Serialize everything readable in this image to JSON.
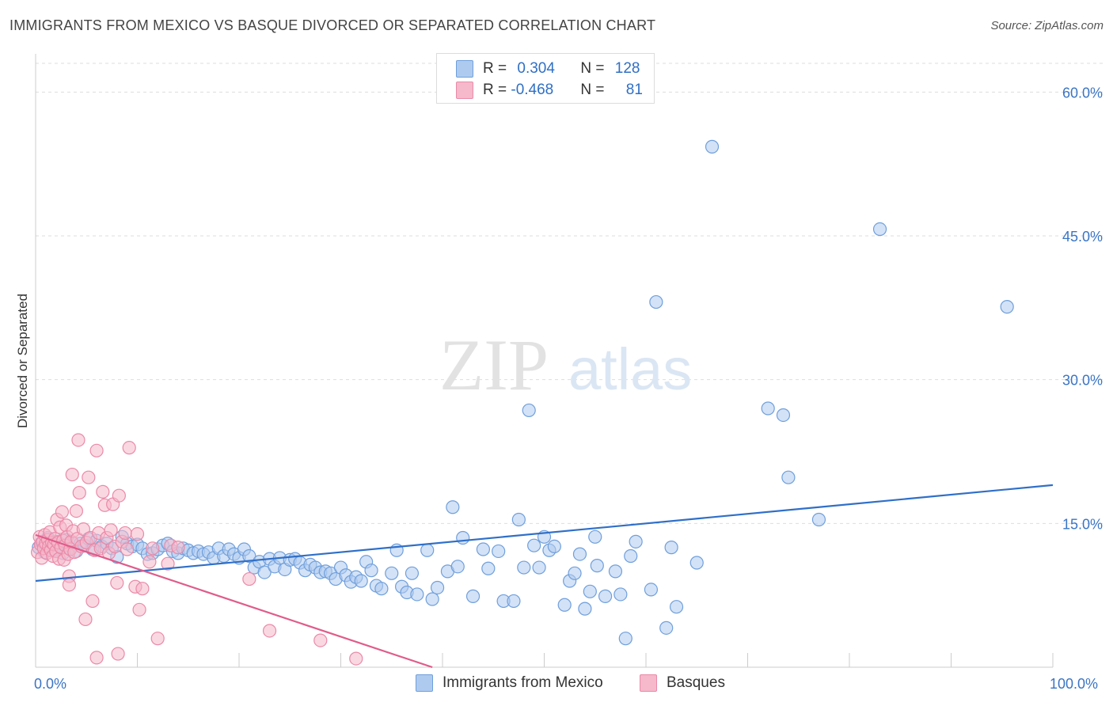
{
  "header": {
    "title": "IMMIGRANTS FROM MEXICO VS BASQUE DIVORCED OR SEPARATED CORRELATION CHART",
    "source": "Source: ZipAtlas.com"
  },
  "watermark": {
    "zip": "ZIP",
    "atlas": "atlas"
  },
  "legend_top": {
    "rows": [
      {
        "r_label": "R = ",
        "r_value": "0.304",
        "n_label": "N = ",
        "n_value": "128"
      },
      {
        "r_label": "R = ",
        "r_value": "-0.468",
        "n_label": "N = ",
        "n_value": "81"
      }
    ]
  },
  "legend_bottom": {
    "items": [
      {
        "label": "Immigrants from Mexico"
      },
      {
        "label": "Basques"
      }
    ]
  },
  "colors": {
    "blue_fill": "#aecbef",
    "blue_stroke": "#6f9fdc",
    "blue_line": "#2f6fc8",
    "pink_fill": "#f6b8cb",
    "pink_stroke": "#ea8aa8",
    "pink_line": "#e05c8a",
    "tick_label": "#3a75c4",
    "grid": "#dddddd"
  },
  "chart_data": {
    "type": "scatter",
    "title": "IMMIGRANTS FROM MEXICO VS BASQUE DIVORCED OR SEPARATED CORRELATION CHART",
    "xlabel": "",
    "ylabel": "Divorced or Separated",
    "xlim": [
      0,
      100
    ],
    "ylim": [
      0,
      63
    ],
    "x_tick_labels": [
      "0.0%",
      "100.0%"
    ],
    "y_ticks": [
      15,
      30,
      45,
      60
    ],
    "y_tick_labels": [
      "15.0%",
      "30.0%",
      "45.0%",
      "60.0%"
    ],
    "grid": true,
    "legend_position": "top-center",
    "series": [
      {
        "name": "Immigrants from Mexico",
        "color": "#aecbef",
        "r": 0.304,
        "n": 128,
        "trend": {
          "x": [
            0,
            100
          ],
          "y": [
            9.0,
            19.0
          ]
        },
        "points": [
          [
            0.3,
            12.5
          ],
          [
            0.6,
            13.0
          ],
          [
            0.9,
            12.0
          ],
          [
            1.2,
            13.5
          ],
          [
            1.5,
            12.8
          ],
          [
            1.8,
            12.2
          ],
          [
            2.1,
            13.1
          ],
          [
            2.4,
            12.6
          ],
          [
            2.7,
            11.9
          ],
          [
            3.0,
            13.3
          ],
          [
            3.3,
            12.4
          ],
          [
            3.6,
            13.0
          ],
          [
            4.0,
            12.1
          ],
          [
            4.4,
            12.9
          ],
          [
            4.8,
            12.7
          ],
          [
            5.2,
            13.4
          ],
          [
            5.6,
            12.3
          ],
          [
            6.0,
            13.2
          ],
          [
            6.5,
            12.6
          ],
          [
            7.0,
            12.9
          ],
          [
            7.5,
            12.4
          ],
          [
            8.0,
            11.5
          ],
          [
            8.5,
            13.6
          ],
          [
            9.0,
            12.9
          ],
          [
            9.5,
            12.6
          ],
          [
            10.0,
            12.8
          ],
          [
            10.5,
            12.4
          ],
          [
            11.0,
            11.8
          ],
          [
            11.5,
            11.9
          ],
          [
            12.0,
            12.3
          ],
          [
            12.5,
            12.7
          ],
          [
            13.0,
            12.9
          ],
          [
            13.5,
            12.1
          ],
          [
            14.0,
            11.9
          ],
          [
            14.5,
            12.4
          ],
          [
            15.0,
            12.2
          ],
          [
            15.5,
            11.9
          ],
          [
            16.0,
            12.1
          ],
          [
            16.5,
            11.8
          ],
          [
            17.0,
            12.0
          ],
          [
            17.5,
            11.4
          ],
          [
            18.0,
            12.4
          ],
          [
            18.5,
            11.6
          ],
          [
            19.0,
            12.3
          ],
          [
            19.5,
            11.8
          ],
          [
            20.0,
            11.4
          ],
          [
            20.5,
            12.3
          ],
          [
            21.0,
            11.6
          ],
          [
            21.5,
            10.4
          ],
          [
            22.0,
            11.0
          ],
          [
            22.5,
            9.9
          ],
          [
            23.0,
            11.3
          ],
          [
            23.5,
            10.5
          ],
          [
            24.0,
            11.4
          ],
          [
            24.5,
            10.2
          ],
          [
            25.0,
            11.2
          ],
          [
            25.5,
            11.3
          ],
          [
            26.0,
            10.9
          ],
          [
            26.5,
            10.1
          ],
          [
            27.0,
            10.7
          ],
          [
            27.5,
            10.4
          ],
          [
            28.0,
            9.9
          ],
          [
            28.5,
            10.0
          ],
          [
            29.0,
            9.8
          ],
          [
            29.5,
            9.2
          ],
          [
            30.0,
            10.4
          ],
          [
            30.5,
            9.6
          ],
          [
            31.0,
            8.9
          ],
          [
            31.5,
            9.4
          ],
          [
            32.0,
            9.0
          ],
          [
            32.5,
            11.0
          ],
          [
            33.0,
            10.1
          ],
          [
            33.5,
            8.5
          ],
          [
            34.0,
            8.2
          ],
          [
            35.0,
            9.8
          ],
          [
            35.5,
            12.2
          ],
          [
            36.0,
            8.4
          ],
          [
            36.5,
            7.8
          ],
          [
            37.0,
            9.8
          ],
          [
            37.5,
            7.6
          ],
          [
            38.5,
            12.2
          ],
          [
            39.0,
            7.1
          ],
          [
            39.5,
            8.3
          ],
          [
            40.5,
            10.0
          ],
          [
            41.0,
            16.7
          ],
          [
            41.5,
            10.5
          ],
          [
            42.0,
            13.5
          ],
          [
            43.0,
            7.4
          ],
          [
            44.0,
            12.3
          ],
          [
            44.5,
            10.3
          ],
          [
            45.5,
            12.1
          ],
          [
            46.0,
            6.9
          ],
          [
            47.0,
            6.9
          ],
          [
            47.5,
            15.4
          ],
          [
            48.0,
            10.4
          ],
          [
            48.5,
            26.8
          ],
          [
            49.0,
            12.7
          ],
          [
            49.5,
            10.4
          ],
          [
            50.0,
            13.6
          ],
          [
            50.5,
            12.2
          ],
          [
            51.0,
            12.6
          ],
          [
            52.0,
            6.5
          ],
          [
            52.5,
            9.0
          ],
          [
            53.0,
            9.8
          ],
          [
            53.5,
            11.8
          ],
          [
            54.0,
            6.1
          ],
          [
            54.5,
            7.9
          ],
          [
            55.0,
            13.6
          ],
          [
            55.2,
            10.6
          ],
          [
            56.0,
            7.4
          ],
          [
            57.0,
            10.0
          ],
          [
            57.5,
            7.6
          ],
          [
            58.0,
            3.0
          ],
          [
            58.5,
            11.6
          ],
          [
            59.0,
            13.1
          ],
          [
            60.5,
            8.1
          ],
          [
            61.0,
            38.1
          ],
          [
            62.0,
            4.1
          ],
          [
            62.5,
            12.5
          ],
          [
            63.0,
            6.3
          ],
          [
            65.0,
            10.9
          ],
          [
            66.5,
            54.3
          ],
          [
            72.0,
            27.0
          ],
          [
            73.5,
            26.3
          ],
          [
            74.0,
            19.8
          ],
          [
            77.0,
            15.4
          ],
          [
            83.0,
            45.7
          ],
          [
            95.5,
            37.6
          ]
        ]
      },
      {
        "name": "Basques",
        "color": "#f6b8cb",
        "r": -0.468,
        "n": 81,
        "trend": {
          "x": [
            0,
            39
          ],
          "y": [
            13.8,
            0
          ]
        },
        "points": [
          [
            0.2,
            12.0
          ],
          [
            0.4,
            13.6
          ],
          [
            0.5,
            12.8
          ],
          [
            0.6,
            11.4
          ],
          [
            0.7,
            13.1
          ],
          [
            0.8,
            12.4
          ],
          [
            0.9,
            13.8
          ],
          [
            1.0,
            12.9
          ],
          [
            1.1,
            11.9
          ],
          [
            1.2,
            13.3
          ],
          [
            1.3,
            12.6
          ],
          [
            1.4,
            14.1
          ],
          [
            1.5,
            12.2
          ],
          [
            1.6,
            13.0
          ],
          [
            1.7,
            11.6
          ],
          [
            1.8,
            12.8
          ],
          [
            1.9,
            13.4
          ],
          [
            2.0,
            12.1
          ],
          [
            2.1,
            15.4
          ],
          [
            2.2,
            13.0
          ],
          [
            2.3,
            11.3
          ],
          [
            2.4,
            14.6
          ],
          [
            2.5,
            12.5
          ],
          [
            2.6,
            16.2
          ],
          [
            2.7,
            13.2
          ],
          [
            2.8,
            11.2
          ],
          [
            2.9,
            12.7
          ],
          [
            3.0,
            14.8
          ],
          [
            3.1,
            13.6
          ],
          [
            3.2,
            11.8
          ],
          [
            3.3,
            9.5
          ],
          [
            3.3,
            8.6
          ],
          [
            3.4,
            12.3
          ],
          [
            3.5,
            13.1
          ],
          [
            3.6,
            20.1
          ],
          [
            3.7,
            14.2
          ],
          [
            3.8,
            12.0
          ],
          [
            4.0,
            16.3
          ],
          [
            4.1,
            13.4
          ],
          [
            4.2,
            23.7
          ],
          [
            4.3,
            18.2
          ],
          [
            4.5,
            12.6
          ],
          [
            4.7,
            14.4
          ],
          [
            4.9,
            5.0
          ],
          [
            5.0,
            13.0
          ],
          [
            5.2,
            19.8
          ],
          [
            5.4,
            13.5
          ],
          [
            5.6,
            6.9
          ],
          [
            5.8,
            12.2
          ],
          [
            6.0,
            22.6
          ],
          [
            6.0,
            1.0
          ],
          [
            6.2,
            14.0
          ],
          [
            6.4,
            12.4
          ],
          [
            6.6,
            18.3
          ],
          [
            6.8,
            16.9
          ],
          [
            7.0,
            13.5
          ],
          [
            7.2,
            11.9
          ],
          [
            7.4,
            14.3
          ],
          [
            7.6,
            17.0
          ],
          [
            7.8,
            12.6
          ],
          [
            8.0,
            8.8
          ],
          [
            8.1,
            1.4
          ],
          [
            8.2,
            17.9
          ],
          [
            8.5,
            13.1
          ],
          [
            8.8,
            14.0
          ],
          [
            9.0,
            12.3
          ],
          [
            9.2,
            22.9
          ],
          [
            9.8,
            8.4
          ],
          [
            10.0,
            13.9
          ],
          [
            10.2,
            6.0
          ],
          [
            10.5,
            8.2
          ],
          [
            11.2,
            11.0
          ],
          [
            11.5,
            12.4
          ],
          [
            12.0,
            3.0
          ],
          [
            13.0,
            10.8
          ],
          [
            13.3,
            12.7
          ],
          [
            14.0,
            12.5
          ],
          [
            21.0,
            9.2
          ],
          [
            23.0,
            3.8
          ],
          [
            28.0,
            2.8
          ],
          [
            31.5,
            0.9
          ]
        ]
      }
    ]
  }
}
